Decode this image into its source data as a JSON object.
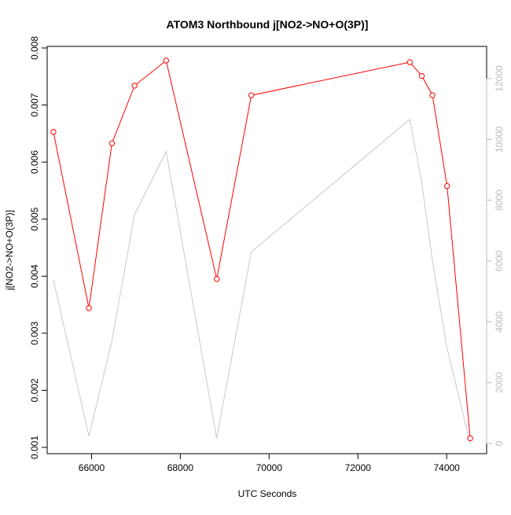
{
  "chart_data": {
    "type": "line",
    "title": "ATOM3 Northbound j[NO2->NO+O(3P)]",
    "xlabel": "UTC Seconds",
    "ylabel": "j[NO2->NO+O(3P)]",
    "xlim": [
      65000,
      74900
    ],
    "ylim": [
      0.001,
      0.008
    ],
    "y2lim": [
      0,
      12500
    ],
    "grid": false,
    "x_ticks": [
      66000,
      68000,
      70000,
      72000,
      74000
    ],
    "y_ticks": [
      0.001,
      0.002,
      0.003,
      0.004,
      0.005,
      0.006,
      0.007,
      0.008
    ],
    "y2_ticks": [
      0,
      2000,
      4000,
      6000,
      8000,
      10000,
      12000
    ],
    "series": [
      {
        "axis": "left",
        "color": "#ff0000",
        "marker": "open-circle",
        "x": [
          65140,
          65940,
          66460,
          66970,
          67680,
          68820,
          69600,
          73170,
          73440,
          73680,
          74010,
          74530
        ],
        "values": [
          0.00653,
          0.00344,
          0.00633,
          0.00734,
          0.00778,
          0.00395,
          0.00717,
          0.00775,
          0.00751,
          0.00717,
          0.00558,
          0.00116
        ]
      },
      {
        "axis": "right",
        "color": "#c8c8c8",
        "marker": "none",
        "x": [
          65140,
          65940,
          66460,
          66970,
          67680,
          68820,
          69600,
          73170,
          73440,
          73680,
          74010,
          74530
        ],
        "values": [
          5380,
          240,
          3380,
          7540,
          9610,
          170,
          6300,
          10660,
          8560,
          6000,
          3130,
          0
        ]
      }
    ]
  }
}
